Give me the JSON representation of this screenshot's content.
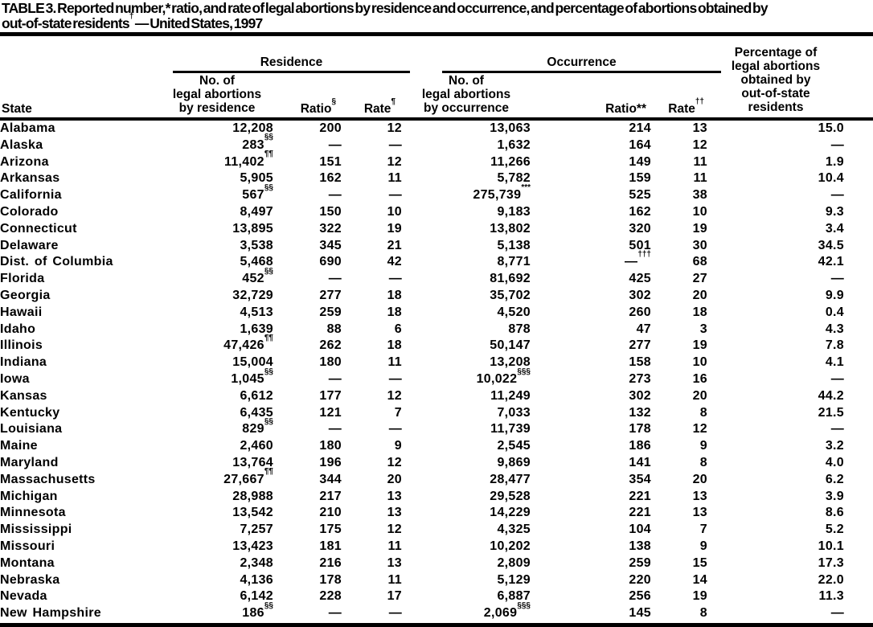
{
  "colors": {
    "text": "#000000",
    "background": "#ffffff",
    "rule": "#000000"
  },
  "page": {
    "title_line1": "TABLE 3. Reported number,* ratio, and rate of legal abortions by residence and occurrence, and percentage of abortions obtained by",
    "title_line2": "out-of-state residents{†} — United States, 1997"
  },
  "table": {
    "group_headers": {
      "residence": "Residence",
      "occurrence": "Occurrence"
    },
    "column_headers": {
      "state": "State",
      "residence_number": "No. of\nlegal abortions\nby residence",
      "residence_ratio": "Ratio{§}",
      "residence_rate": "Rate{¶}",
      "occurrence_number": "No. of\nlegal abortions\nby occurrence",
      "occurrence_ratio": "Ratio**",
      "occurrence_rate": "Rate{††}",
      "percentage": "Percentage of\nlegal abortions\nobtained by\nout-of-state\nresidents"
    },
    "rows": [
      [
        "Alabama",
        "12,208",
        "200",
        "12",
        "13,063",
        "214",
        "13",
        "15.0"
      ],
      [
        "Alaska",
        "283{§§}",
        "—",
        "—",
        "1,632",
        "164",
        "12",
        "—"
      ],
      [
        "Arizona",
        "11,402{¶¶}",
        "151",
        "12",
        "11,266",
        "149",
        "11",
        "1.9"
      ],
      [
        "Arkansas",
        "5,905",
        "162",
        "11",
        "5,782",
        "159",
        "11",
        "10.4"
      ],
      [
        "California",
        "567{§§}",
        "—",
        "—",
        "275,739{***}",
        "525",
        "38",
        "—"
      ],
      [
        "Colorado",
        "8,497",
        "150",
        "10",
        "9,183",
        "162",
        "10",
        "9.3"
      ],
      [
        "Connecticut",
        "13,895",
        "322",
        "19",
        "13,802",
        "320",
        "19",
        "3.4"
      ],
      [
        "Delaware",
        "3,538",
        "345",
        "21",
        "5,138",
        "501",
        "30",
        "34.5"
      ],
      [
        "Dist. of Columbia",
        "5,468",
        "690",
        "42",
        "8,771",
        "—{†††}",
        "68",
        "42.1"
      ],
      [
        "Florida",
        "452{§§}",
        "—",
        "—",
        "81,692",
        "425",
        "27",
        "—"
      ],
      [
        "Georgia",
        "32,729",
        "277",
        "18",
        "35,702",
        "302",
        "20",
        "9.9"
      ],
      [
        "Hawaii",
        "4,513",
        "259",
        "18",
        "4,520",
        "260",
        "18",
        "0.4"
      ],
      [
        "Idaho",
        "1,639",
        "88",
        "6",
        "878",
        "47",
        "3",
        "4.3"
      ],
      [
        "Illinois",
        "47,426{¶¶}",
        "262",
        "18",
        "50,147",
        "277",
        "19",
        "7.8"
      ],
      [
        "Indiana",
        "15,004",
        "180",
        "11",
        "13,208",
        "158",
        "10",
        "4.1"
      ],
      [
        "Iowa",
        "1,045{§§}",
        "—",
        "—",
        "10,022{§§§}",
        "273",
        "16",
        "—"
      ],
      [
        "Kansas",
        "6,612",
        "177",
        "12",
        "11,249",
        "302",
        "20",
        "44.2"
      ],
      [
        "Kentucky",
        "6,435",
        "121",
        "7",
        "7,033",
        "132",
        "8",
        "21.5"
      ],
      [
        "Louisiana",
        "829{§§}",
        "—",
        "—",
        "11,739",
        "178",
        "12",
        "—"
      ],
      [
        "Maine",
        "2,460",
        "180",
        "9",
        "2,545",
        "186",
        "9",
        "3.2"
      ],
      [
        "Maryland",
        "13,764",
        "196",
        "12",
        "9,869",
        "141",
        "8",
        "4.0"
      ],
      [
        "Massachusetts",
        "27,667{¶¶}",
        "344",
        "20",
        "28,477",
        "354",
        "20",
        "6.2"
      ],
      [
        "Michigan",
        "28,988",
        "217",
        "13",
        "29,528",
        "221",
        "13",
        "3.9"
      ],
      [
        "Minnesota",
        "13,542",
        "210",
        "13",
        "14,229",
        "221",
        "13",
        "8.6"
      ],
      [
        "Mississippi",
        "7,257",
        "175",
        "12",
        "4,325",
        "104",
        "7",
        "5.2"
      ],
      [
        "Missouri",
        "13,423",
        "181",
        "11",
        "10,202",
        "138",
        "9",
        "10.1"
      ],
      [
        "Montana",
        "2,348",
        "216",
        "13",
        "2,809",
        "259",
        "15",
        "17.3"
      ],
      [
        "Nebraska",
        "4,136",
        "178",
        "11",
        "5,129",
        "220",
        "14",
        "22.0"
      ],
      [
        "Nevada",
        "6,142",
        "228",
        "17",
        "6,887",
        "256",
        "19",
        "11.3"
      ],
      [
        "New Hampshire",
        "186{§§}",
        "—",
        "—",
        "2,069{§§§}",
        "145",
        "8",
        "—"
      ]
    ]
  }
}
